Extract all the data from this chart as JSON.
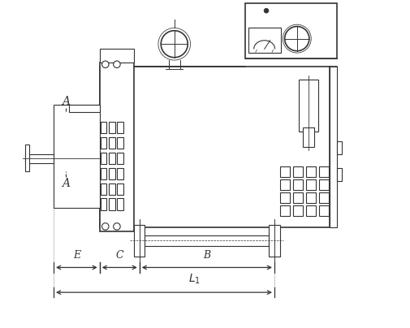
{
  "bg_color": "#ffffff",
  "lc": "#333333",
  "lw": 1.2,
  "tlw": 0.8,
  "fig_w": 5.05,
  "fig_h": 4.04,
  "xlim": [
    0,
    10.5
  ],
  "ylim": [
    0,
    8.5
  ]
}
